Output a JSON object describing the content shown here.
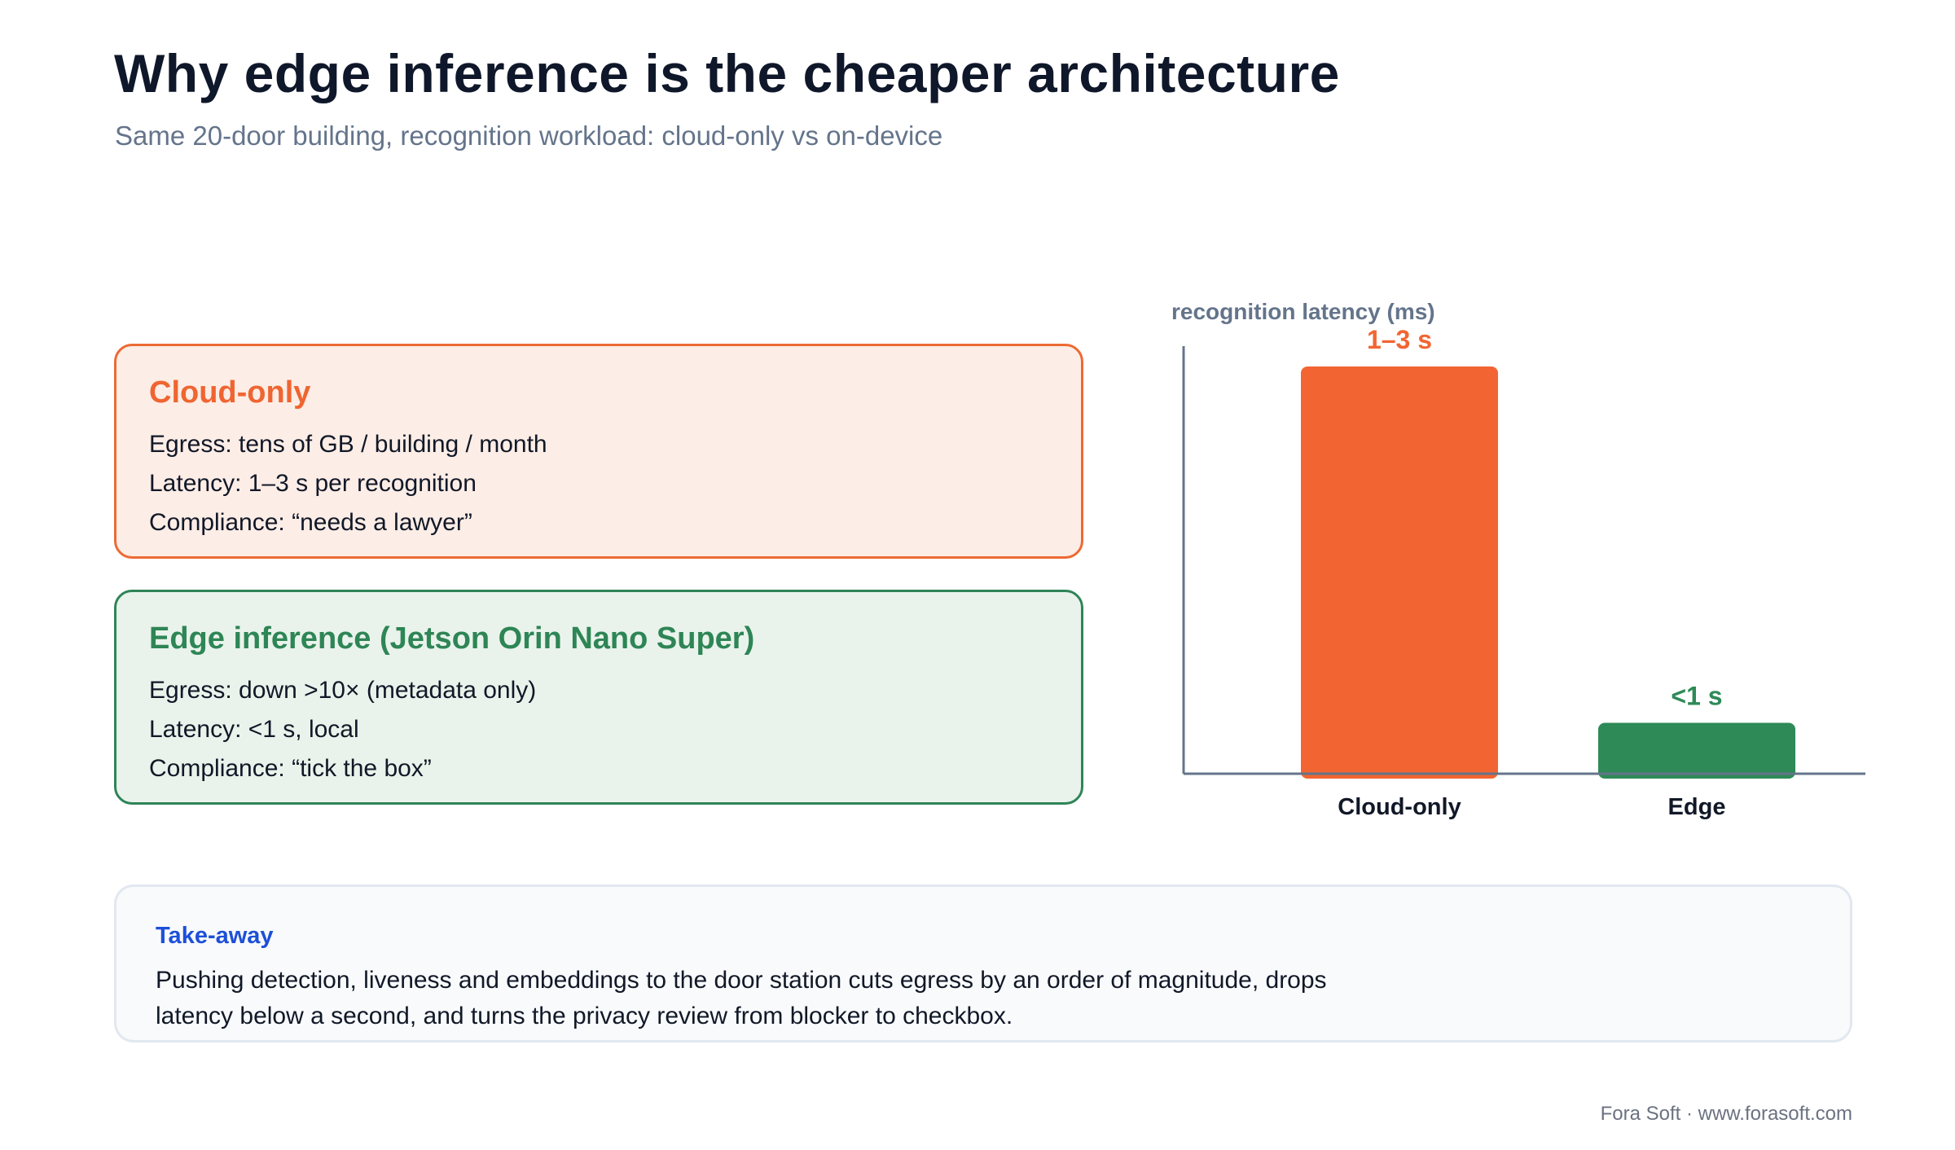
{
  "header": {
    "title": "Why edge inference is the cheaper architecture",
    "subtitle": "Same 20-door building, recognition workload: cloud-only vs on-device"
  },
  "cards": {
    "cloud": {
      "title": "Cloud-only",
      "lines": [
        "Egress: tens of GB / building / month",
        "Latency: 1–3 s per recognition",
        "Compliance: “needs a lawyer”"
      ]
    },
    "edge": {
      "title": "Edge inference (Jetson Orin Nano Super)",
      "lines": [
        "Egress: down >10× (metadata only)",
        "Latency: <1 s, local",
        "Compliance: “tick the box”"
      ]
    }
  },
  "chart_data": {
    "type": "bar",
    "ylabel": "recognition latency (ms)",
    "categories": [
      "Cloud-only",
      "Edge"
    ],
    "values": [
      2000,
      250
    ],
    "data_labels": [
      "1–3 s",
      "<1 s"
    ],
    "colors": [
      "#f26532",
      "#2e8a57"
    ],
    "ylim": [
      0,
      2100
    ],
    "grid": false
  },
  "takeaway": {
    "label": "Take-away",
    "text": "Pushing detection, liveness and embeddings to the door station cuts egress by an order of magnitude, drops latency below a second, and turns the privacy review from blocker to checkbox."
  },
  "footer": {
    "credit": "Fora Soft · www.forasoft.com"
  }
}
